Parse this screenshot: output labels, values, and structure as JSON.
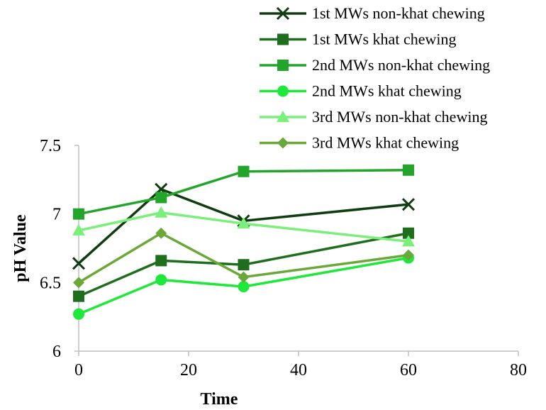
{
  "chart_data": {
    "type": "line",
    "title": "",
    "xlabel": "Time",
    "ylabel": "pH Value",
    "xlim": [
      0,
      80
    ],
    "ylim": [
      6,
      7.5
    ],
    "x_ticks": [
      "0",
      "20",
      "40",
      "60",
      "80"
    ],
    "y_ticks": [
      "6",
      "6.5",
      "7",
      "7.5"
    ],
    "x_tick_values": [
      0,
      20,
      40,
      60,
      80
    ],
    "y_tick_values": [
      6,
      6.5,
      7,
      7.5
    ],
    "grid": false,
    "legend_position": "top-right",
    "x": [
      0,
      15,
      30,
      60
    ],
    "series": [
      {
        "name": "1st MWs non-khat chewing",
        "values": [
          6.64,
          7.18,
          6.95,
          7.07
        ],
        "color": "#0f3d0f",
        "marker": "x"
      },
      {
        "name": "1st MWs khat chewing",
        "values": [
          6.4,
          6.66,
          6.63,
          6.86
        ],
        "color": "#1e6e1e",
        "marker": "square"
      },
      {
        "name": "2nd MWs non-khat chewing",
        "values": [
          7.0,
          7.12,
          7.31,
          7.32
        ],
        "color": "#22a52a",
        "marker": "square"
      },
      {
        "name": "2nd MWs khat chewing",
        "values": [
          6.27,
          6.52,
          6.47,
          6.68
        ],
        "color": "#1ee83a",
        "marker": "circle"
      },
      {
        "name": "3rd MWs non-khat chewing",
        "values": [
          6.88,
          7.01,
          6.93,
          6.8
        ],
        "color": "#7af07a",
        "marker": "triangle"
      },
      {
        "name": "3rd MWs khat chewing",
        "values": [
          6.5,
          6.86,
          6.54,
          6.7
        ],
        "color": "#6aa83a",
        "marker": "diamond"
      }
    ]
  }
}
